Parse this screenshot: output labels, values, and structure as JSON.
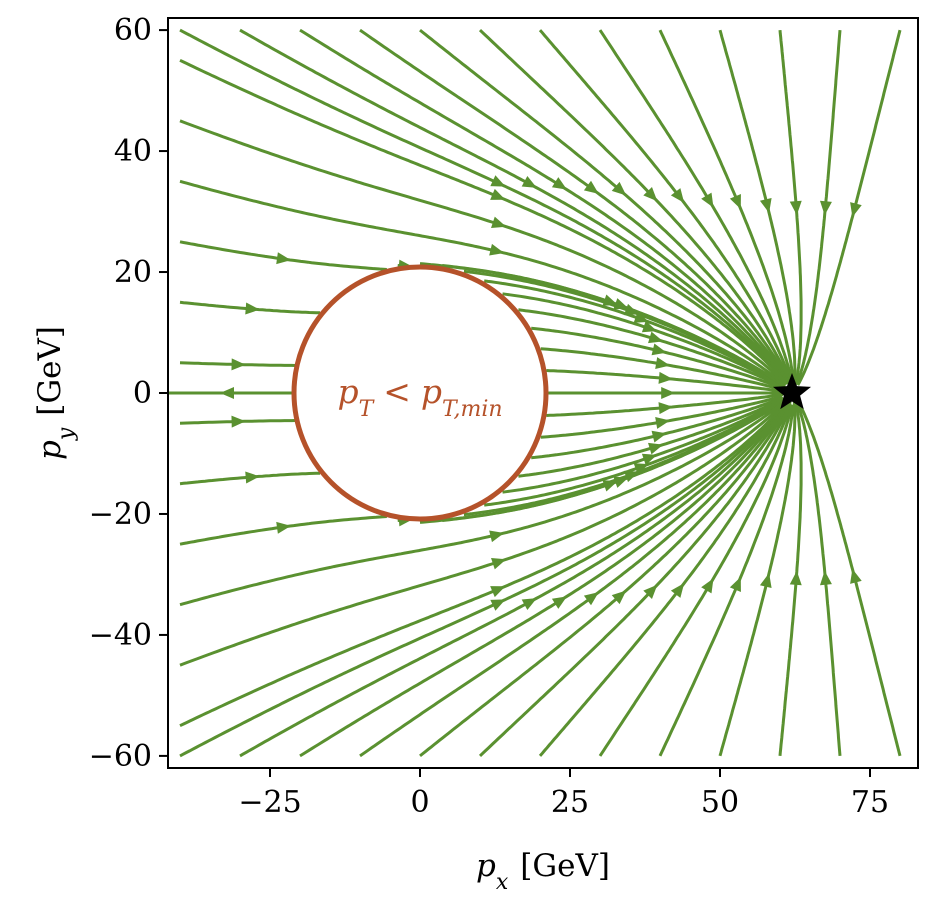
{
  "chart_data": {
    "type": "streamplot",
    "title": "",
    "xlabel": {
      "base": "p",
      "sub": "x",
      "unit": "[GeV]"
    },
    "ylabel": {
      "base": "p",
      "sub": "y",
      "unit": "[GeV]"
    },
    "xlim": [
      -42,
      83
    ],
    "ylim": [
      -62,
      62
    ],
    "xticks": [
      -25,
      0,
      25,
      50,
      75
    ],
    "yticks": [
      -60,
      -40,
      -20,
      0,
      20,
      40,
      60
    ],
    "xtick_labels": [
      "−25",
      "0",
      "25",
      "50",
      "75"
    ],
    "ytick_labels": [
      "−60",
      "−40",
      "−20",
      "0",
      "20",
      "40",
      "60"
    ],
    "grid": false,
    "stream_color": "#5a9130",
    "excluded_region": {
      "shape": "circle",
      "center": [
        0,
        0
      ],
      "radius": 21,
      "color": "#b5522a",
      "label": {
        "base": "p",
        "sub": "T",
        "relation": "<",
        "base2": "p",
        "sub2": "T,min"
      }
    },
    "target_point": {
      "x": 62,
      "y": 0,
      "marker": "star",
      "color": "#000000"
    }
  }
}
